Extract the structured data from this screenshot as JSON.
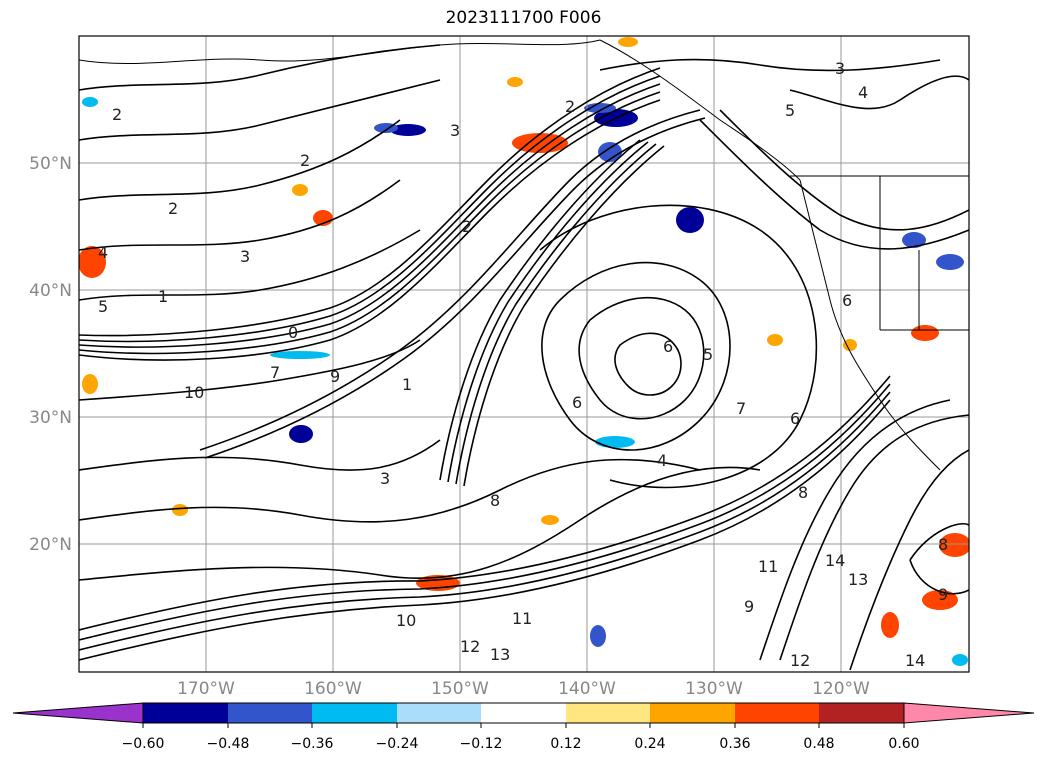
{
  "title": "2023111700 F006",
  "latitude_labels": [
    "50°N",
    "40°N",
    "30°N",
    "20°N"
  ],
  "longitude_labels": [
    "170°W",
    "160°W",
    "150°W",
    "140°W",
    "130°W",
    "120°W"
  ],
  "colorbar": {
    "ticks": [
      "−0.60",
      "−0.48",
      "−0.36",
      "−0.24",
      "−0.12",
      "0.12",
      "0.24",
      "0.36",
      "0.48",
      "0.60"
    ],
    "colors": [
      "#9933cc",
      "#000099",
      "#3355cc",
      "#00bbf0",
      "#aaddf8",
      "#ffffff",
      "#ffe680",
      "#ffa500",
      "#ff4400",
      "#b22222",
      "#ff88aa"
    ]
  },
  "colors": {
    "gridline": "#999999",
    "contour": "#000000",
    "coastline": "#000000"
  },
  "contour_labels": [
    "2",
    "2",
    "3",
    "4",
    "5",
    "1",
    "2",
    "3",
    "2",
    "3",
    "4",
    "5",
    "6",
    "6",
    "7",
    "8",
    "9",
    "10",
    "11",
    "12",
    "13",
    "14",
    "4",
    "6",
    "7",
    "8",
    "9",
    "10",
    "11",
    "12",
    "13",
    "14",
    "3",
    "2",
    "1",
    "0",
    "9",
    "8",
    "6",
    "5"
  ]
}
